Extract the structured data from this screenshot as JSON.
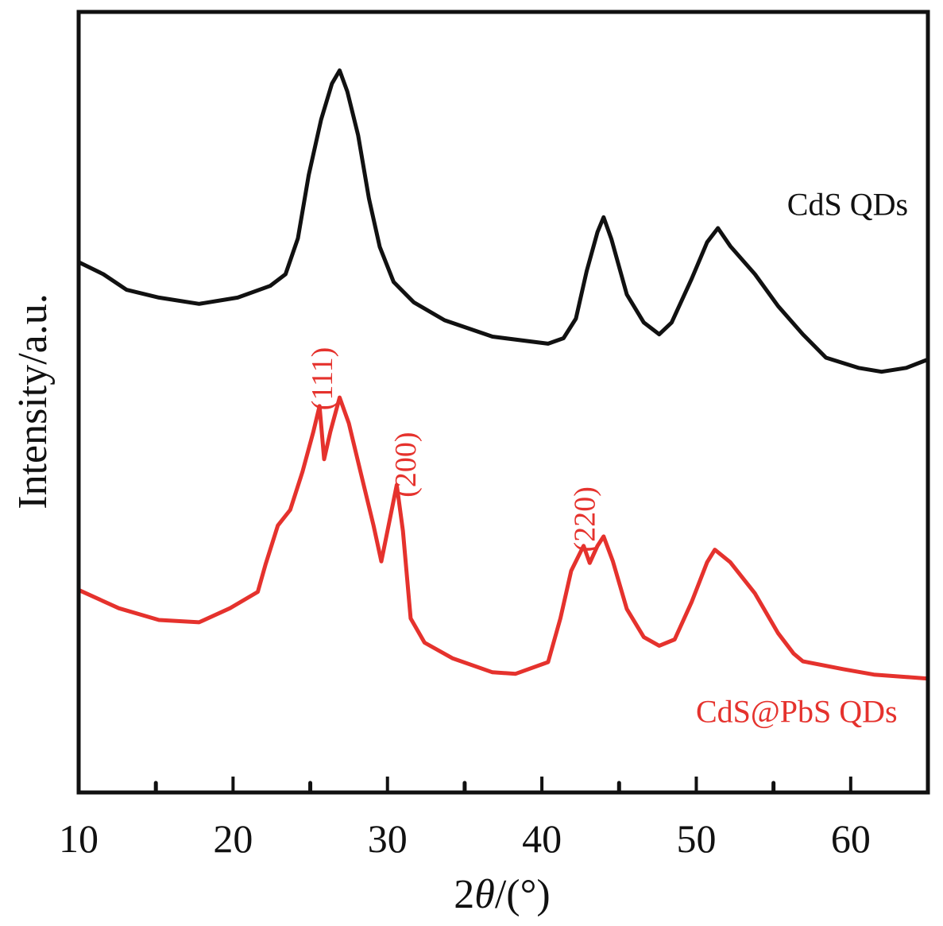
{
  "chart_data": {
    "type": "line",
    "title": "",
    "xlabel_prefix": "2",
    "xlabel_symbol": "θ",
    "xlabel_suffix": "/(°)",
    "xlabel": "2θ/(°)",
    "ylabel": "Intensity/a.u.",
    "xlim": [
      10,
      65
    ],
    "ylim": [
      0,
      100
    ],
    "xticks": [
      10,
      20,
      30,
      40,
      50,
      60
    ],
    "xtick_labels": [
      "10",
      "20",
      "30",
      "40",
      "50",
      "60"
    ],
    "minor_xticks": [
      15,
      25,
      35,
      45,
      55
    ],
    "yticks": [],
    "grid": false,
    "legend": "none",
    "series": [
      {
        "name": "CdS QDs",
        "color": "#111111",
        "label_position": [
          59.8,
          74
        ],
        "x": [
          10.05,
          11.6,
          13.1,
          15.2,
          17.8,
          20.3,
          22.4,
          23.4,
          24.2,
          24.9,
          25.7,
          26.4,
          26.9,
          27.4,
          28.1,
          28.8,
          29.5,
          30.4,
          31.7,
          33.7,
          36.8,
          40.4,
          41.4,
          42.2,
          42.9,
          43.6,
          44.0,
          44.5,
          45.5,
          46.6,
          47.6,
          48.4,
          49.7,
          50.7,
          51.4,
          52.2,
          53.8,
          55.3,
          56.9,
          58.4,
          60.5,
          62.0,
          63.6,
          64.9
        ],
        "y": [
          67.9,
          66.4,
          64.4,
          63.4,
          62.6,
          63.4,
          64.9,
          66.4,
          71.0,
          79.1,
          86.2,
          90.8,
          92.5,
          89.8,
          84.2,
          76.1,
          69.9,
          65.4,
          62.8,
          60.5,
          58.4,
          57.5,
          58.2,
          60.7,
          66.8,
          71.8,
          73.7,
          70.9,
          63.8,
          60.2,
          58.7,
          60.2,
          65.8,
          70.5,
          72.3,
          70.0,
          66.4,
          62.3,
          58.7,
          55.7,
          54.4,
          53.9,
          54.4,
          55.4
        ]
      },
      {
        "name": "CdS@PbS QDs",
        "color": "#e5322d",
        "label_position": [
          56.5,
          9
        ],
        "x": [
          10.05,
          12.6,
          15.2,
          17.8,
          19.8,
          21.6,
          22.1,
          22.9,
          23.7,
          24.5,
          25.2,
          25.6,
          25.9,
          26.3,
          26.9,
          27.5,
          28.3,
          29.1,
          29.6,
          30.1,
          30.6,
          31.0,
          31.5,
          32.4,
          34.2,
          36.8,
          38.3,
          40.4,
          41.2,
          41.9,
          42.7,
          43.1,
          43.6,
          44.0,
          44.6,
          45.5,
          46.6,
          47.6,
          48.6,
          49.7,
          50.7,
          51.2,
          52.2,
          53.8,
          55.3,
          56.3,
          56.9,
          59.5,
          61.5,
          63.6,
          64.9
        ],
        "y": [
          25.9,
          23.6,
          22.1,
          21.8,
          23.6,
          25.7,
          29.2,
          34.2,
          36.2,
          41.1,
          46.2,
          49.5,
          42.7,
          46.2,
          50.6,
          47.3,
          40.7,
          34.2,
          29.6,
          34.5,
          39.4,
          33.5,
          22.3,
          19.2,
          17.2,
          15.4,
          15.2,
          16.7,
          22.3,
          28.4,
          31.6,
          29.4,
          31.6,
          32.8,
          29.6,
          23.5,
          19.9,
          18.8,
          19.6,
          24.4,
          29.5,
          31.1,
          29.5,
          25.5,
          20.4,
          17.8,
          16.8,
          15.8,
          15.1,
          14.8,
          14.6
        ]
      }
    ],
    "annotations": [
      {
        "text": "(111)",
        "x": 25.8,
        "y": 53,
        "color": "#e5322d",
        "rotation": "vertical"
      },
      {
        "text": "(200)",
        "x": 31.2,
        "y": 42,
        "color": "#e5322d",
        "rotation": "vertical"
      },
      {
        "text": "(220)",
        "x": 42.8,
        "y": 35,
        "color": "#e5322d",
        "rotation": "vertical"
      }
    ]
  }
}
